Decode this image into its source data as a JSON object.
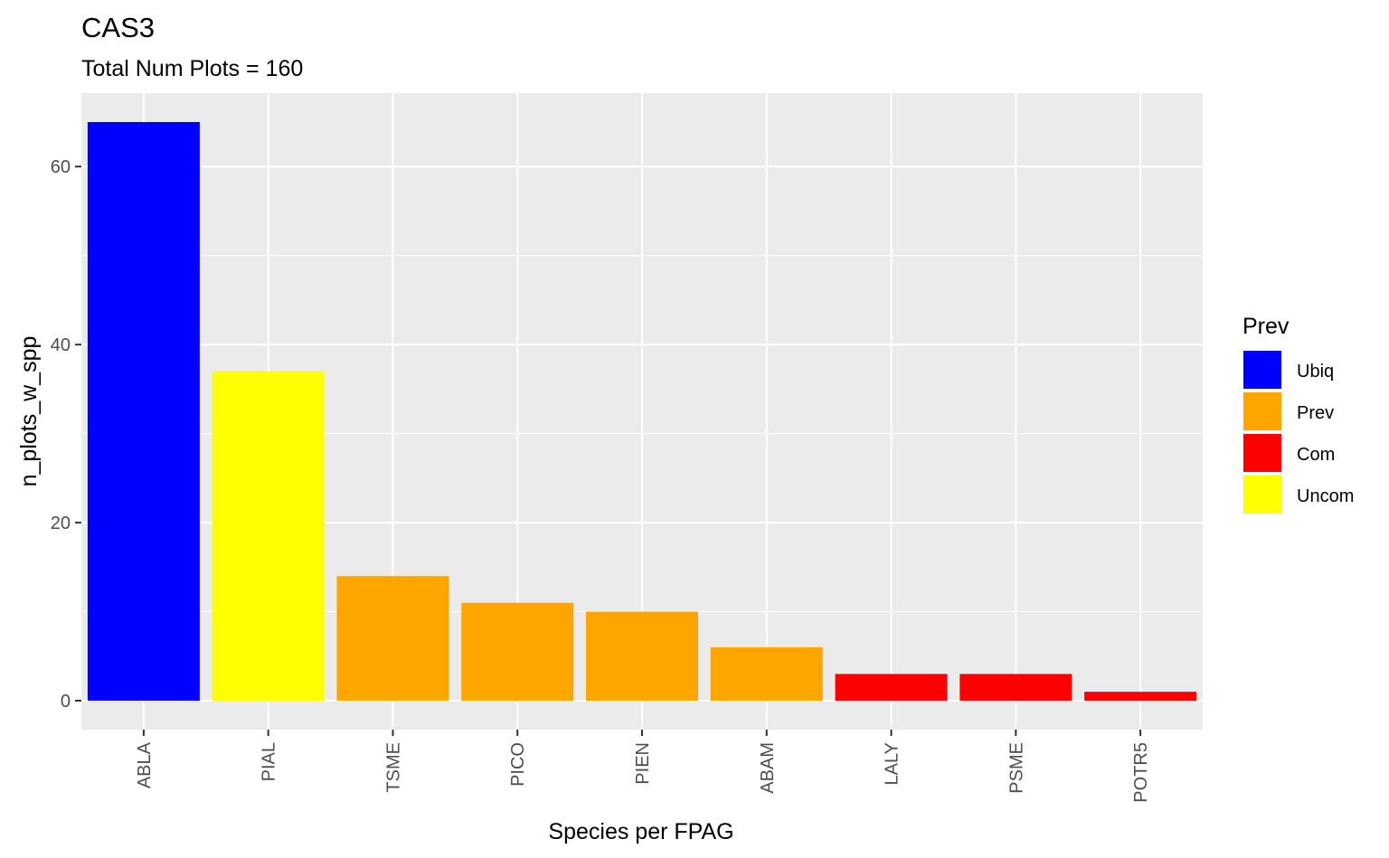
{
  "chart_data": {
    "type": "bar",
    "title": "CAS3",
    "subtitle": "Total Num Plots = 160",
    "xlabel": "Species per FPAG",
    "ylabel": "n_plots_w_spp",
    "categories": [
      "ABLA",
      "PIAL",
      "TSME",
      "PICO",
      "PIEN",
      "ABAM",
      "LALY",
      "PSME",
      "POTR5"
    ],
    "values": [
      65,
      37,
      14,
      11,
      10,
      6,
      3,
      3,
      1
    ],
    "groups": [
      "Ubiq",
      "Uncom",
      "Prev",
      "Prev",
      "Prev",
      "Prev",
      "Com",
      "Com",
      "Com"
    ],
    "ylim": [
      -3.25,
      68.25
    ],
    "yticks": [
      0,
      20,
      40,
      60
    ],
    "grid": true,
    "legend": {
      "title": "Prev",
      "position": "right",
      "entries": [
        {
          "label": "Ubiq",
          "color": "#0000FF"
        },
        {
          "label": "Prev",
          "color": "#FFA500"
        },
        {
          "label": "Com",
          "color": "#FF0000"
        },
        {
          "label": "Uncom",
          "color": "#FFFF00"
        }
      ]
    },
    "panel_background": "#EBEBEB",
    "grid_color": "#FFFFFF"
  }
}
